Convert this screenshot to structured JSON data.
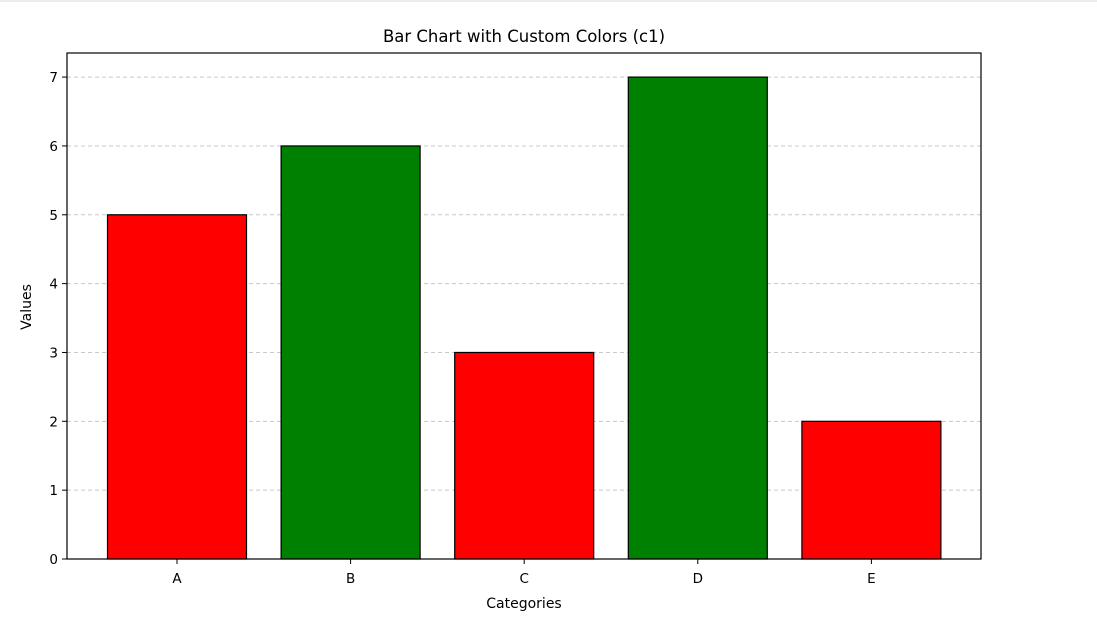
{
  "chart_data": {
    "type": "bar",
    "title": "Bar Chart with Custom Colors (c1)",
    "xlabel": "Categories",
    "ylabel": "Values",
    "categories": [
      "A",
      "B",
      "C",
      "D",
      "E"
    ],
    "values": [
      5,
      6,
      3,
      7,
      2
    ],
    "bar_colors": [
      "#ff0000",
      "#008000",
      "#ff0000",
      "#008000",
      "#ff0000"
    ],
    "bar_edge_color": "#000000",
    "ylim": [
      0,
      7.35
    ],
    "yticks": [
      0,
      1,
      2,
      3,
      4,
      5,
      6,
      7
    ],
    "grid": {
      "axis": "y",
      "style": "dashed",
      "color": "#c8c8c8"
    }
  }
}
